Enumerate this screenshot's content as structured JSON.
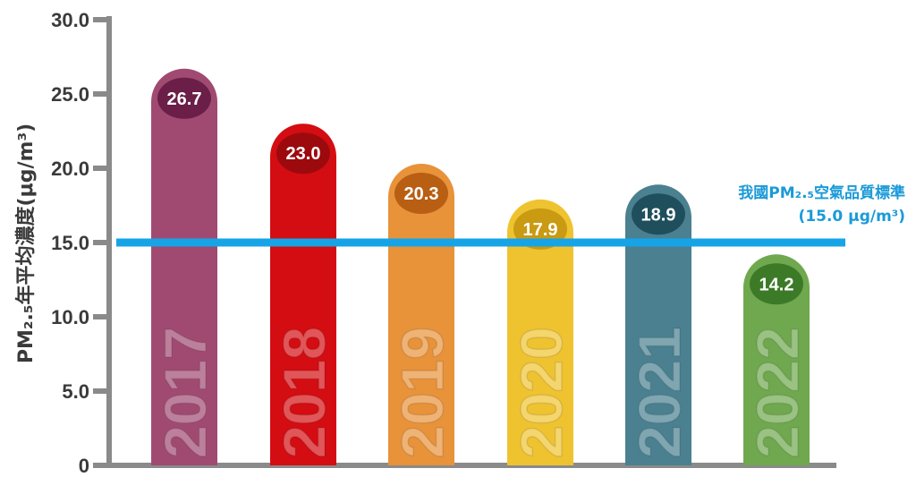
{
  "chart_data": {
    "type": "bar",
    "categories": [
      "2017",
      "2018",
      "2019",
      "2020",
      "2021",
      "2022"
    ],
    "values": [
      26.7,
      23.0,
      20.3,
      17.9,
      18.9,
      14.2
    ],
    "value_labels": [
      "26.7",
      "23.0",
      "20.3",
      "17.9",
      "18.9",
      "14.2"
    ],
    "bar_colors": [
      "#a04a72",
      "#d40d12",
      "#e8923a",
      "#efc330",
      "#4a8090",
      "#6fa84e"
    ],
    "badge_colors": [
      "#6a1e48",
      "#9c0a0e",
      "#b85f14",
      "#c99a12",
      "#1f4f5c",
      "#3c7a28"
    ],
    "ylabel": "PM₂.₅年平均濃度(μg/m³)",
    "ylim": [
      0,
      30
    ],
    "yticks": [
      0,
      5,
      10,
      15,
      20,
      25,
      30
    ],
    "ytick_labels": [
      "0",
      "5.0",
      "10.0",
      "15.0",
      "20.0",
      "25.0",
      "30.0"
    ],
    "reference_line": {
      "value": 15.0,
      "color": "#16a4e6",
      "label_line1": "我國PM₂.₅空氣品質標準",
      "label_line2": "(15.0 μg/m³)"
    },
    "grid": false
  }
}
